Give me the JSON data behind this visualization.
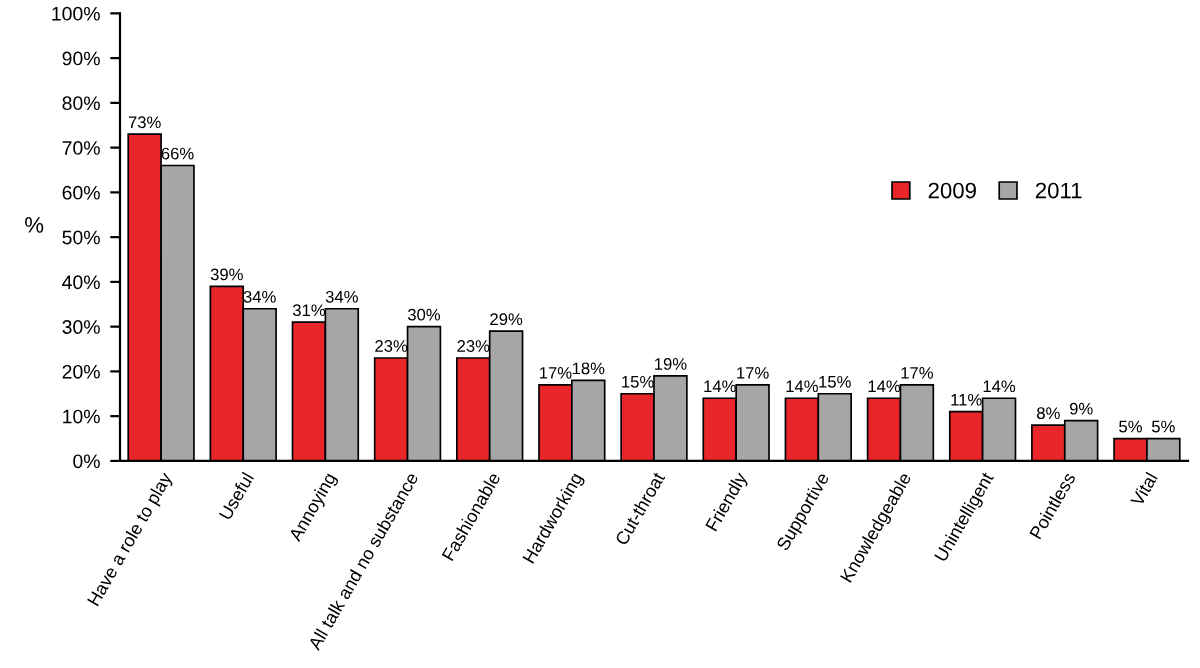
{
  "chart_data": {
    "type": "bar",
    "ylabel": "%",
    "categories": [
      "Have a role to play",
      "Useful",
      "Annoying",
      "All talk and no substance",
      "Fashionable",
      "Hardworking",
      "Cut-throat",
      "Friendly",
      "Supportive",
      "Knowledgeable",
      "Unintelligent",
      "Pointless",
      "Vital"
    ],
    "series": [
      {
        "name": "2009",
        "color": "#e8262a",
        "values": [
          73,
          39,
          31,
          23,
          23,
          17,
          15,
          14,
          14,
          14,
          11,
          8,
          5
        ],
        "value_labels": [
          "73%",
          "39%",
          "31%",
          "23%",
          "23%",
          "17%",
          "15%",
          "14%",
          "14%",
          "14%",
          "11%",
          "8%",
          "5%"
        ]
      },
      {
        "name": "2011",
        "color": "#a6a6a6",
        "values": [
          66,
          34,
          34,
          30,
          29,
          18,
          19,
          17,
          15,
          17,
          14,
          9,
          5
        ],
        "value_labels": [
          "66%",
          "34%",
          "34%",
          "30%",
          "29%",
          "18%",
          "19%",
          "17%",
          "15%",
          "17%",
          "14%",
          "9%",
          "5%"
        ]
      }
    ],
    "ylim": [
      0,
      100
    ],
    "yticks": [
      {
        "value": 0,
        "label": "0%"
      },
      {
        "value": 10,
        "label": "10%"
      },
      {
        "value": 20,
        "label": "20%"
      },
      {
        "value": 30,
        "label": "30%"
      },
      {
        "value": 40,
        "label": "40%"
      },
      {
        "value": 50,
        "label": "50%"
      },
      {
        "value": 60,
        "label": "60%"
      },
      {
        "value": 70,
        "label": "70%"
      },
      {
        "value": 80,
        "label": "80%"
      },
      {
        "value": 90,
        "label": "90%"
      },
      {
        "value": 100,
        "label": "100%"
      }
    ],
    "legend": "right",
    "grid": false
  }
}
